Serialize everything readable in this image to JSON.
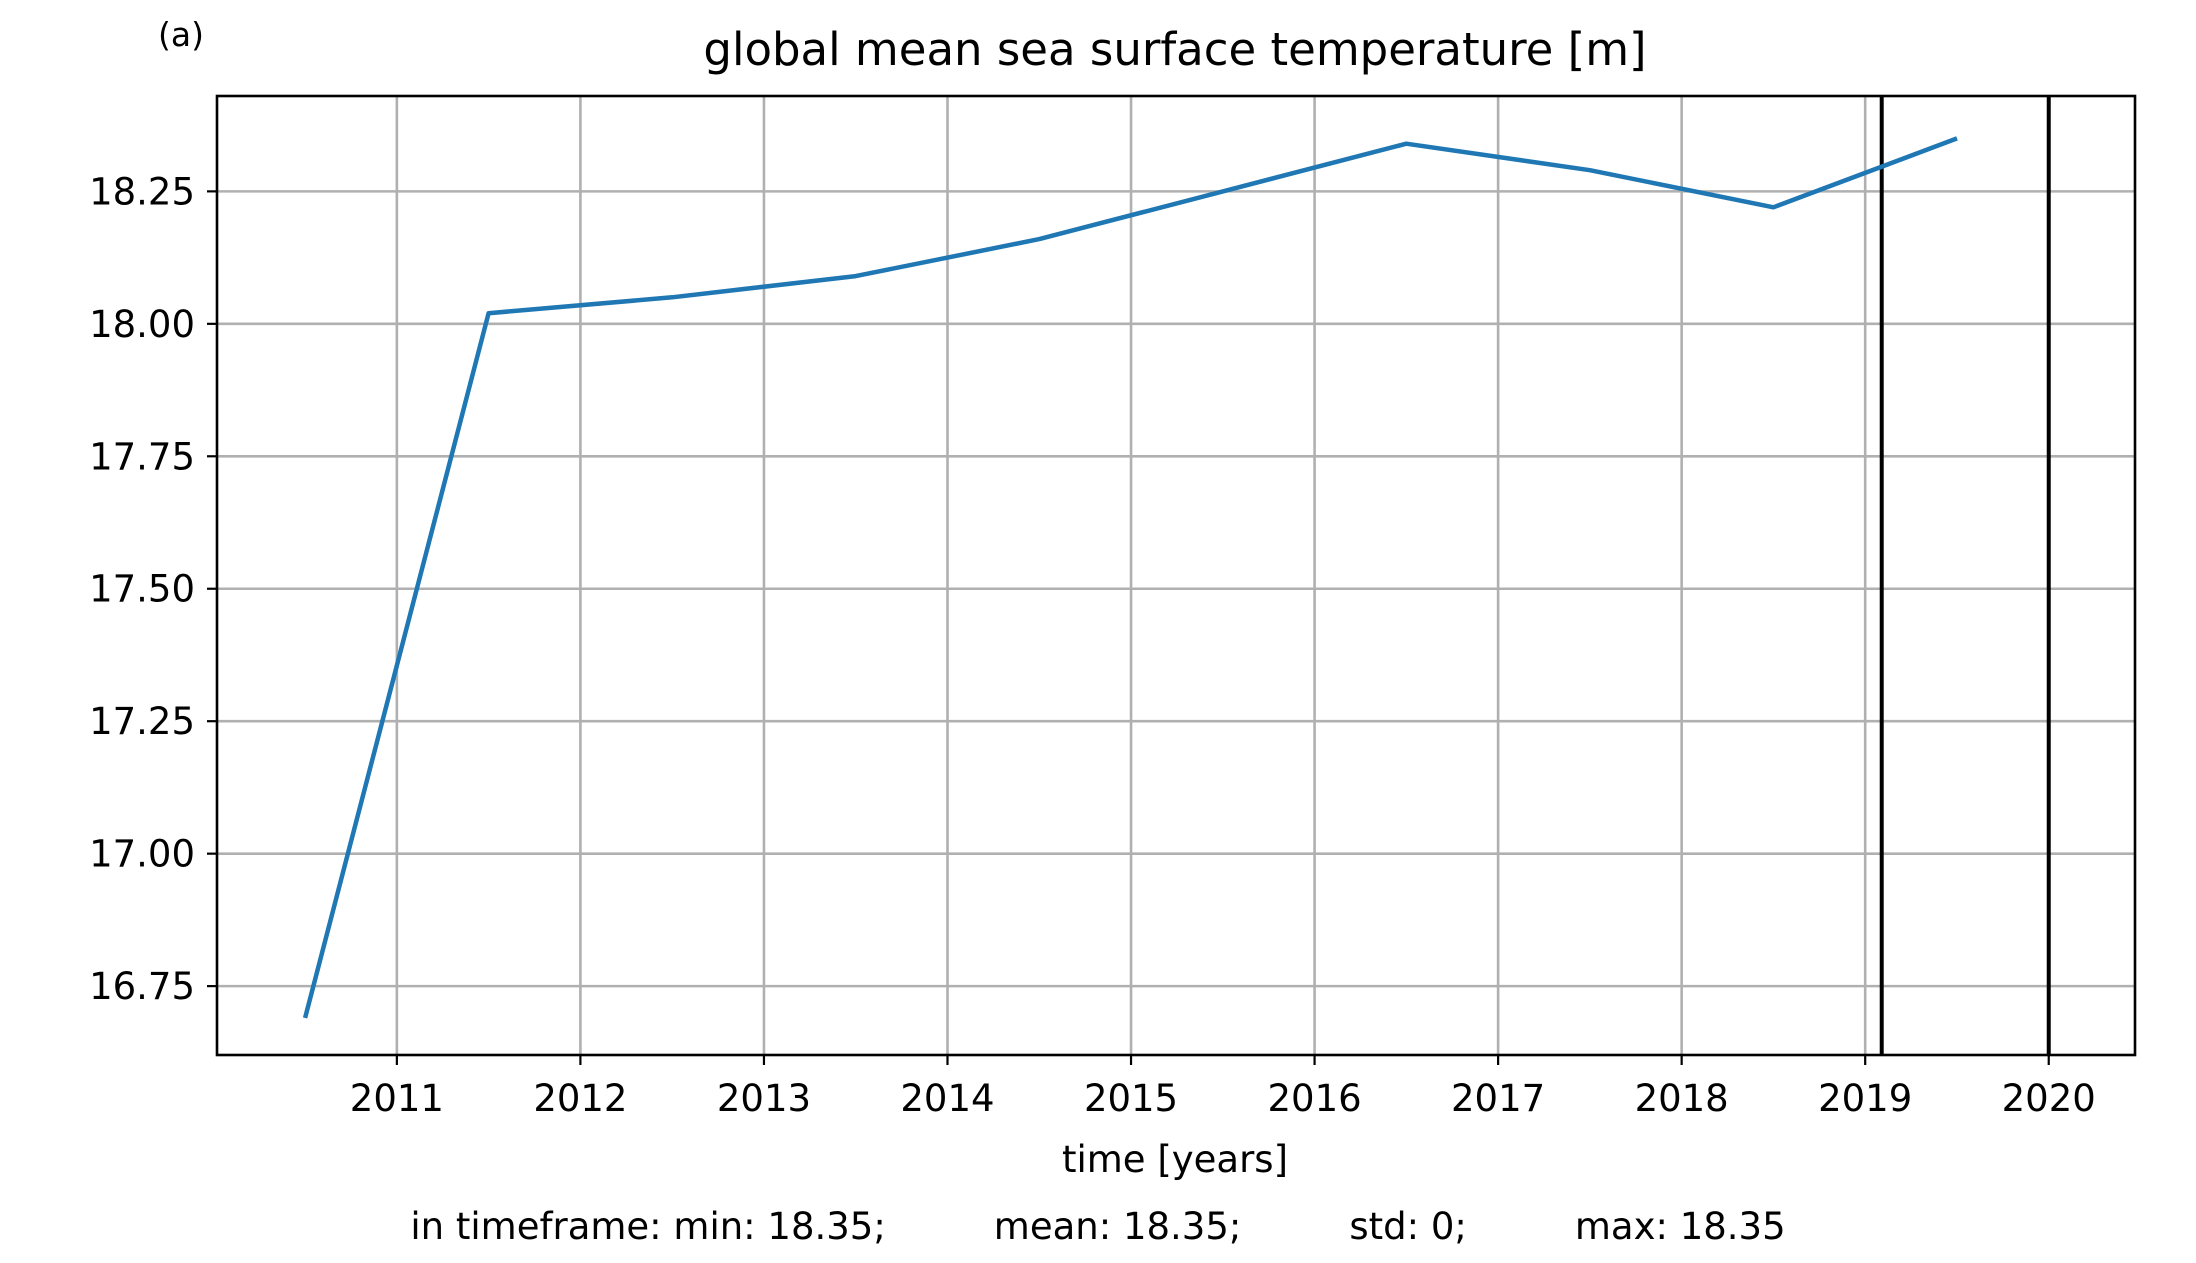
{
  "panel_label": "(a)",
  "footer": {
    "min": "in timeframe: min: 18.35;",
    "mean": "mean: 18.35;",
    "std": "std: 0;",
    "max": "max: 18.35"
  },
  "colors": {
    "line": "#1f77b4",
    "grid": "#b0b0b0",
    "vline": "#000000"
  },
  "chart_data": {
    "type": "line",
    "title": "global mean sea surface temperature [m]",
    "xlabel": "time [years]",
    "ylabel": "",
    "xlim": [
      2010.02,
      2020.47
    ],
    "ylim": [
      16.62,
      18.43
    ],
    "xticks": [
      2011,
      2012,
      2013,
      2014,
      2015,
      2016,
      2017,
      2018,
      2019,
      2020
    ],
    "yticks": [
      16.75,
      17.0,
      17.25,
      17.5,
      17.75,
      18.0,
      18.25
    ],
    "ytick_labels": [
      "16.75",
      "17.00",
      "17.25",
      "17.50",
      "17.75",
      "18.00",
      "18.25"
    ],
    "grid": true,
    "legend": "none",
    "series": [
      {
        "x": [
          2010.5,
          2011.5,
          2012.5,
          2013.5,
          2014.5,
          2015.5,
          2016.5,
          2017.5,
          2018.5,
          2019.5
        ],
        "values": [
          16.69,
          18.02,
          18.05,
          18.09,
          18.16,
          18.25,
          18.34,
          18.29,
          18.22,
          18.35
        ]
      }
    ],
    "vertical_lines": [
      2019.09,
      2020.0
    ]
  }
}
